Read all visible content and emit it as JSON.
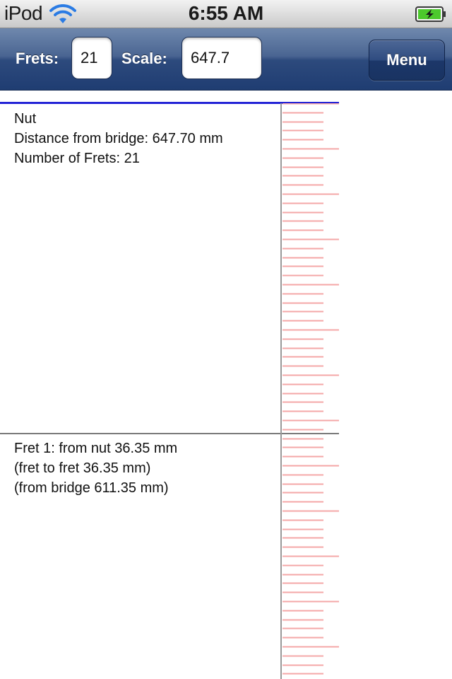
{
  "status_bar": {
    "device": "iPod",
    "time": "6:55 AM",
    "wifi_icon": "wifi-icon",
    "battery_icon": "battery-charging-icon"
  },
  "toolbar": {
    "frets_label": "Frets:",
    "frets_value": "21",
    "scale_label": "Scale:",
    "scale_value": "647.7",
    "menu_label": "Menu"
  },
  "nut": {
    "title": "Nut",
    "distance": "Distance from bridge: 647.70 mm",
    "frets": "Number of Frets: 21"
  },
  "fret1": {
    "from_nut": "Fret 1: from nut 36.35 mm",
    "fret_to_fret": "(fret to fret 36.35 mm)",
    "from_bridge": "(from bridge 611.35 mm)"
  },
  "colors": {
    "nut_line": "#2424d6",
    "fret_line": "#7a7a7a",
    "ruler_tick": "#f4a7a7",
    "ruler_axis": "#9a9a9a",
    "toolbar": "#2d4a7d"
  }
}
